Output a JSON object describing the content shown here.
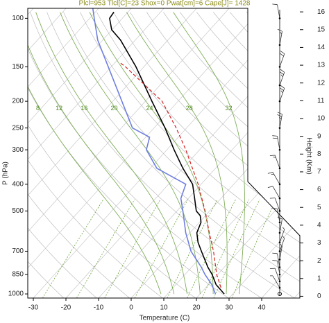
{
  "chart_data": {
    "type": "skewt",
    "title": "Plcl=953 Tlcl[C]=23 Shox=0 Pwat[cm]=6 Cape[J]= 1428",
    "xlabel": "Temperature (C)",
    "ylabel": "P (hPa)",
    "height_label": "Height (Km)",
    "xlim": [
      -31.7,
      51.7
    ],
    "xticks": [
      -30,
      -20,
      -10,
      0,
      10,
      20,
      30,
      40
    ],
    "ylim": [
      1035,
      92
    ],
    "yticks": [
      100,
      150,
      200,
      250,
      300,
      400,
      500,
      700,
      850,
      1000
    ],
    "log_y": true,
    "height_lim": [
      -0.1,
      16.2
    ],
    "height_ticks": [
      0,
      1,
      2,
      3,
      4,
      5,
      6,
      7,
      8,
      9,
      10,
      11,
      12,
      13,
      14,
      15,
      16
    ],
    "moist_adiabats": [
      8,
      12,
      16,
      20,
      24,
      28,
      32
    ],
    "series": [
      {
        "color": "#000000",
        "dash": false,
        "pressure": [
          1000,
          925,
          850,
          800,
          700,
          650,
          600,
          550,
          520,
          500,
          450,
          400,
          350,
          300,
          250,
          200,
          150,
          120,
          110,
          100,
          95
        ],
        "values": [
          27.4,
          22.3,
          18.3,
          15,
          8.6,
          5.1,
          2.1,
          0.5,
          -1.6,
          -4.1,
          -8.1,
          -12.6,
          -20,
          -27.8,
          -36.6,
          -48,
          -62.4,
          -74.5,
          -80.1,
          -83.9,
          -84.3
        ]
      },
      {
        "color": "#6f7fe0",
        "dash": false,
        "pressure": [
          1000,
          925,
          850,
          800,
          700,
          600,
          500,
          450,
          400,
          350,
          300,
          270,
          250,
          200,
          150,
          120,
          100,
          92
        ],
        "values": [
          24.7,
          21,
          16.1,
          13,
          5.4,
          -1.3,
          -8.2,
          -12.3,
          -14.7,
          -28,
          -36.3,
          -38.8,
          -46.6,
          -57.2,
          -70.9,
          -81.5,
          -88.6,
          -91.8
        ]
      },
      {
        "color": "#d42020",
        "dash": true,
        "pressure": [
          950,
          850,
          700,
          600,
          500,
          400,
          300,
          250,
          200,
          150,
          145
        ],
        "values": [
          24.7,
          19.7,
          12.3,
          5.9,
          -1.4,
          -10.9,
          -24.2,
          -33.2,
          -44.9,
          -65.6,
          -68.4
        ]
      }
    ],
    "winds": {
      "pressure": [
        1000,
        950,
        900,
        850,
        800,
        750,
        700,
        650,
        600,
        550,
        500,
        450,
        400,
        350,
        300,
        250,
        200,
        175,
        150,
        125,
        100
      ],
      "speed": [
        0,
        5,
        10,
        10,
        10,
        5,
        5,
        5,
        10,
        10,
        10,
        10,
        15,
        15,
        20,
        25,
        25,
        25,
        20,
        15,
        10
      ],
      "direction": [
        0,
        330,
        340,
        350,
        350,
        10,
        20,
        20,
        10,
        350,
        340,
        330,
        330,
        340,
        350,
        10,
        20,
        20,
        20,
        10,
        350
      ]
    }
  }
}
